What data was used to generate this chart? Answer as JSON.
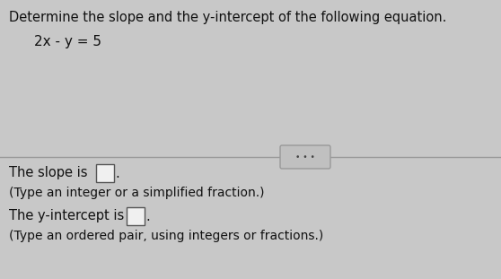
{
  "bg_color": "#c8c8c8",
  "title_text": "Determine the slope and the y-intercept of the following equation.",
  "equation_text": "2x - y = 5",
  "slope_label": "The slope is",
  "slope_hint": "(Type an integer or a simplified fraction.)",
  "intercept_label": "The y-intercept is",
  "intercept_hint": "(Type an ordered pair, using integers or fractions.)",
  "text_color": "#111111",
  "font_size_title": 10.5,
  "font_size_eq": 11.0,
  "font_size_body": 10.5,
  "font_size_hint": 10.0,
  "box_color": "#f0f0f0",
  "box_edge_color": "#555555",
  "divider_color": "#999999",
  "btn_color": "#c0c0c0",
  "btn_edge_color": "#999999"
}
